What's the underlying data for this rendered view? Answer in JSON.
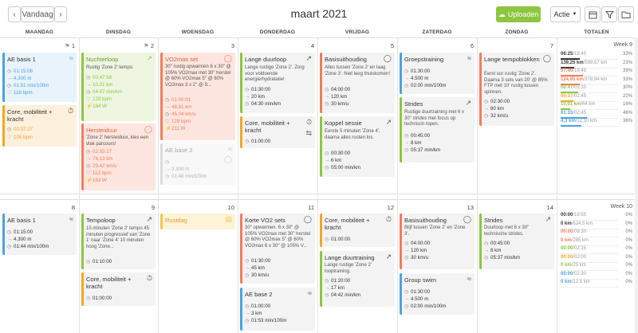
{
  "toolbar": {
    "today_label": "Vandaag",
    "prev_icon": "chevron-left",
    "next_icon": "chevron-right",
    "title": "maart 2021",
    "upload_label": "Uploaden",
    "action_label": "Actie",
    "upload_color": "#8dc63f"
  },
  "day_headers": [
    "MAANDAG",
    "DINSDAG",
    "WOENSDAG",
    "DONDERDAG",
    "VRIJDAG",
    "ZATERDAG",
    "ZONDAG",
    "TOTALEN"
  ],
  "colors": {
    "swim": "#4aa3df",
    "run": "#8dc63f",
    "bike": "#f47c5a",
    "strength": "#f5a623",
    "rest": "#f9c74f",
    "gray": "#cfcfcf"
  },
  "week1": {
    "day_numbers": [
      "1",
      "2",
      "3",
      "4",
      "5",
      "6",
      "7"
    ],
    "week_label": "Week 9",
    "cards": {
      "mon1": {
        "title": "AE basis 1",
        "icon": "swim-icon",
        "metrics": [
          "01:15:08",
          "4.300 m",
          "01:51 min/100m",
          "116 bpm"
        ]
      },
      "mon2": {
        "title": "Core, mobiliteit + kracht",
        "icon": "stopwatch-icon",
        "metrics": [
          "00:37:27",
          "105 bpm"
        ]
      },
      "tue1": {
        "title": "Nuchterloop",
        "icon": "run-icon",
        "desc": "Rustig 'Zone 2' tempo.",
        "metrics": [
          "00:47:58",
          "10,01 km",
          "04:47 min/km",
          "129 bpm",
          "164 W"
        ]
      },
      "tue2": {
        "title": "Hersteiduur",
        "icon": "bike-icon",
        "desc": "'Zone 2' hersteiduur, kies een vlak parcours!",
        "metrics": [
          "02:35:17",
          "76,13 km",
          "29,42 km/u",
          "113 bpm",
          "163 W"
        ]
      },
      "wed1": {
        "title": "VO2max set",
        "icon": "bike-icon",
        "desc": "30\" rustig opwarmen 6 x 30\" @ 105% VO2max met 30\" herstel @ 60% VO2max 5\" @ 60% VO2max 3 x 2\" @ 9...",
        "metrics": [
          "01:05:01",
          "48,81 km",
          "45,04 km/u",
          "129 bpm",
          "211 W"
        ]
      },
      "wed2": {
        "title": "AE base 2",
        "icon": "swim-icon",
        "metrics": [
          "",
          "3.300 m",
          "01:49 min/100m"
        ]
      },
      "thu1": {
        "title": "Lange duurloop",
        "icon": "run-icon",
        "desc": "Lange rustige 'Zone 2'. Zorg voor voldoende energie/hydratatie!",
        "metrics": [
          "01:30:00",
          "20 km",
          "04:30 min/km"
        ]
      },
      "thu2": {
        "title": "Core, mobiliteit + kracht",
        "icon": "stopwatch-icon",
        "metrics": [
          "01:00:00"
        ]
      },
      "fri1": {
        "title": "Basisuithouding",
        "icon": "bike-icon",
        "desc": "Alles tussen 'Zone 2' en laag 'Zone 3'. Niet leeg thuiskomen!",
        "metrics": [
          "04:00:00",
          "120 km",
          "30 km/u"
        ]
      },
      "fri2": {
        "title": "Koppel sessie",
        "icon": "run-icon",
        "desc": "Eerste 5 minuten 'Zone 4', daarna alles rusten los.",
        "metrics": [
          "00:30:00",
          "6 km",
          "05:00 min/km"
        ]
      },
      "sat1": {
        "title": "Groepstraining",
        "icon": "swim-icon",
        "metrics": [
          "01:30:00",
          "4.500 m",
          "02:00 min/100m"
        ]
      },
      "sat2": {
        "title": "Strides",
        "icon": "run-icon",
        "desc": "Rustige duurtraining met 6 x 30\" strides met focus op technisch lopen.",
        "metrics": [
          "00:45:00",
          "8 km",
          "05:37 min/km"
        ]
      },
      "sun1": {
        "title": "Lange tempoblokken",
        "icon": "bike-icon",
        "desc": "Eerst uur rustig 'Zone 2'. Daarna 3 sets van 20' @ 85% FTP met 10' rustig tussen spinnen.",
        "metrics": [
          "02:30:00",
          "80 km",
          "32 km/u"
        ]
      }
    },
    "totals": [
      {
        "value": "06:25",
        "target": "19:45",
        "pct": "33%",
        "color": "#333",
        "ratio": 0.33
      },
      {
        "value": "139,25 km",
        "target": "599,57 km",
        "pct": "23%",
        "color": "#333",
        "ratio": 0.23
      },
      {
        "value": "07:40",
        "target": "19:45",
        "pct": "39%",
        "color": "#f47c5a",
        "ratio": 0.39
      },
      {
        "value": "124,95 km",
        "target": "378,94 km",
        "pct": "33%",
        "color": "#f47c5a",
        "ratio": 0.33
      },
      {
        "value": "00:47",
        "target": "02:35",
        "pct": "30%",
        "color": "#8dc63f",
        "ratio": 0.3
      },
      {
        "value": "00:37",
        "target": "02:45",
        "pct": "22%",
        "color": "#f5a623",
        "ratio": 0.22
      },
      {
        "value": "10,01 km",
        "target": "64 km",
        "pct": "16%",
        "color": "#8dc63f",
        "ratio": 0.16
      },
      {
        "value": "01:15",
        "target": "02:45",
        "pct": "46%",
        "color": "#4aa3df",
        "ratio": 0.46
      },
      {
        "value": "4,3 km",
        "target": "12,10 km",
        "pct": "36%",
        "color": "#4aa3df",
        "ratio": 0.36
      }
    ]
  },
  "week2": {
    "day_numbers": [
      "8",
      "9",
      "10",
      "11",
      "12",
      "13",
      "14"
    ],
    "week_label": "Week 10",
    "cards": {
      "mon1": {
        "title": "AE basis 1",
        "icon": "swim-icon",
        "metrics": [
          "01:15:00",
          "4.300 m",
          "01:44 min/100m"
        ]
      },
      "tue1": {
        "title": "Tempoloop",
        "icon": "run-icon",
        "desc": "15 minuten 'Zone 2' tempo 45 minuten progressief van 'Zone 1' naar 'Zone 4' 10 minuten hoog 'Zone...",
        "metrics": [
          "01:10:00"
        ]
      },
      "tue2": {
        "title": "Core, mobiliteit + kracht",
        "icon": "stopwatch-icon",
        "metrics": [
          "01:00:00"
        ]
      },
      "wed1": {
        "title": "Rustdag",
        "icon": "clipboard-icon"
      },
      "thu1": {
        "title": "Korte VO2 sets",
        "icon": "bike-icon",
        "desc": "30\" opwarmen. 6 x 30\" @ 105% VO2max met 30\" herstel @ 60% VO2max 5\" @ 60% VO2max 6 x 30\" @ 105% V...",
        "metrics": [
          "01:30:00",
          "45 km",
          "30 km/u"
        ]
      },
      "thu2": {
        "title": "AE base 2",
        "icon": "swim-icon",
        "metrics": [
          "01:00:00",
          "3 km",
          "01:53 min/100m"
        ]
      },
      "fri1": {
        "title": "Core, mobiliteit + kracht",
        "icon": "stopwatch-icon",
        "metrics": [
          "01:00:00"
        ]
      },
      "fri2": {
        "title": "Lange duurtraining",
        "icon": "run-icon",
        "desc": "Lange rustige 'Zone 2' looptraining.",
        "metrics": [
          "01:20:00",
          "17 km",
          "04:42 min/km"
        ]
      },
      "sat1": {
        "title": "Basisuithouding",
        "icon": "bike-icon",
        "desc": "Blijf tussen 'Zone 2' en 'Zone 3'.",
        "metrics": [
          "04:00:00",
          "120 km",
          "30 km/u"
        ]
      },
      "sat2": {
        "title": "Group swim",
        "icon": "swim-icon",
        "metrics": [
          "01:30:00",
          "4.500 m",
          "02:00 min/100m"
        ]
      },
      "sun1": {
        "title": "Strides",
        "icon": "run-icon",
        "desc": "Duurloop met 6 x 30\" technische strides.",
        "metrics": [
          "00:45:00",
          "8 km",
          "05:37 min/km"
        ]
      }
    },
    "totals": [
      {
        "value": "00:00",
        "target": "19:55",
        "pct": "0%",
        "color": "#333",
        "ratio": 0
      },
      {
        "value": "0 km",
        "target": "624,5 km",
        "pct": "0%",
        "color": "#333",
        "ratio": 0
      },
      {
        "value": "00:00",
        "target": "08:30",
        "pct": "0%",
        "color": "#f47c5a",
        "ratio": 0
      },
      {
        "value": "0 km",
        "target": "285 km",
        "pct": "0%",
        "color": "#f47c5a",
        "ratio": 0
      },
      {
        "value": "00:00",
        "target": "02:15",
        "pct": "0%",
        "color": "#8dc63f",
        "ratio": 0
      },
      {
        "value": "00:00",
        "target": "02:00",
        "pct": "0%",
        "color": "#f5a623",
        "ratio": 0
      },
      {
        "value": "0 km",
        "target": "25 km",
        "pct": "0%",
        "color": "#8dc63f",
        "ratio": 0
      },
      {
        "value": "00:00",
        "target": "02:30",
        "pct": "0%",
        "color": "#4aa3df",
        "ratio": 0
      },
      {
        "value": "0 km",
        "target": "12,5 km",
        "pct": "0%",
        "color": "#4aa3df",
        "ratio": 0
      }
    ]
  }
}
